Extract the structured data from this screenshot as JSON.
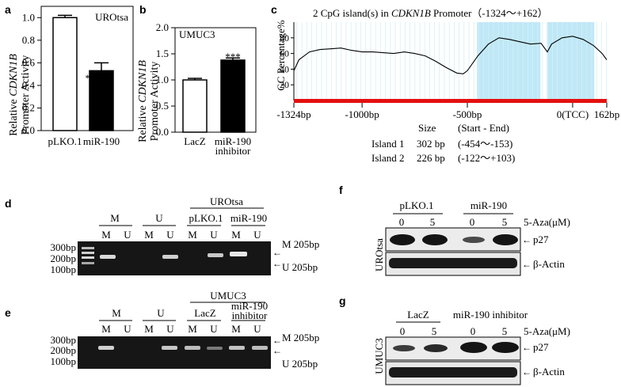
{
  "panels": {
    "a": {
      "label": "a",
      "cell_line": "UROtsa",
      "ylabel_line1_pre": "Relative ",
      "ylabel_gene": "CDKN1B",
      "ylabel_line2": "Promoter Activity",
      "significance": "**"
    },
    "b": {
      "label": "b",
      "cell_line": "UMUC3",
      "ylabel_line1_pre": "Relative ",
      "ylabel_gene": "CDKN1B",
      "ylabel_line2": "Promoter Activity",
      "significance": "***",
      "cat2_line1": "miR-190",
      "cat2_line2": "inhibitor"
    },
    "c": {
      "label": "c",
      "title_pre": "2 CpG island(s)  in ",
      "title_gene": "CDKN1B",
      "title_post": " Promoter（-1324～+162）",
      "ylabel": "GC Percentage%",
      "table": {
        "header_size": "Size",
        "header_range": "(Start - End)",
        "rows": [
          {
            "name": "Island 1",
            "size": "302 bp",
            "range": "(-454～-153)"
          },
          {
            "name": "Island 2",
            "size": "226 bp",
            "range": "(-122～+103)"
          }
        ]
      }
    },
    "d": {
      "label": "d",
      "group_label": "UROtsa",
      "groups": [
        "M",
        "U",
        "pLKO.1",
        "miR-190"
      ],
      "lanes": [
        "M",
        "U",
        "M",
        "U",
        "M",
        "U",
        "M",
        "U"
      ],
      "ladder": [
        "300bp",
        "200bp",
        "100bp"
      ],
      "right_labels": [
        "M 205bp",
        "U 205bp"
      ]
    },
    "e": {
      "label": "e",
      "group_label": "UMUC3",
      "groups": [
        "M",
        "U",
        "LacZ"
      ],
      "group4_line1": "miR-190",
      "group4_line2": "inhibitor",
      "lanes": [
        "M",
        "U",
        "M",
        "U",
        "M",
        "U",
        "M",
        "U"
      ],
      "ladder": [
        "300bp",
        "200bp",
        "100bp"
      ],
      "right_labels": [
        "M 205bp",
        "U 205bp"
      ]
    },
    "f": {
      "label": "f",
      "groups": [
        "pLKO.1",
        "miR-190"
      ],
      "doses": [
        "0",
        "5",
        "0",
        "5"
      ],
      "treatment": "5-Aza(μM)",
      "side_label": "UROtsa",
      "bands": [
        "p27",
        "β-Actin"
      ]
    },
    "g": {
      "label": "g",
      "groups": [
        "LacZ",
        "miR-190 inhibitor"
      ],
      "doses": [
        "0",
        "5",
        "0",
        "5"
      ],
      "treatment": "5-Aza(μM)",
      "side_label": "UMUC3",
      "bands": [
        "p27",
        "β-Actin"
      ]
    }
  },
  "chart_data": [
    {
      "type": "bar",
      "panel": "a",
      "categories": [
        "pLKO.1",
        "miR-190"
      ],
      "values": [
        1.0,
        0.53
      ],
      "errors": [
        0.02,
        0.07
      ],
      "fills": [
        "#ffffff",
        "#000000"
      ],
      "yticks": [
        "0.0",
        "0.2",
        "0.4",
        "0.6",
        "0.8",
        "1.0"
      ],
      "ylim": [
        0,
        1.1
      ]
    },
    {
      "type": "bar",
      "panel": "b",
      "categories": [
        "LacZ",
        "miR-190 inhibitor"
      ],
      "values": [
        1.0,
        1.38
      ],
      "errors": [
        0.03,
        0.04
      ],
      "fills": [
        "#ffffff",
        "#000000"
      ],
      "yticks": [
        "0.0",
        "0.5",
        "1.0",
        "1.5",
        "2.0"
      ],
      "ylim": [
        0,
        2.0
      ]
    },
    {
      "type": "line",
      "panel": "c",
      "x_positions": [
        -1324,
        -1000,
        -500,
        0,
        162
      ],
      "xticks": [
        "-1324bp",
        "-1000bp",
        "-500bp",
        "0(TCC)",
        "162bp"
      ],
      "yticks": [
        "20",
        "40",
        "60",
        "80"
      ],
      "ylim": [
        0,
        100
      ],
      "xlim": [
        -1324,
        162
      ],
      "islands": [
        [
          -454,
          -153
        ],
        [
          -122,
          103
        ]
      ],
      "x": [
        -1324,
        -1300,
        -1250,
        -1200,
        -1150,
        -1100,
        -1050,
        -1000,
        -950,
        -900,
        -850,
        -800,
        -750,
        -700,
        -650,
        -600,
        -550,
        -520,
        -500,
        -450,
        -400,
        -350,
        -300,
        -250,
        -200,
        -150,
        -120,
        -100,
        -50,
        0,
        50,
        100,
        140,
        162
      ],
      "y": [
        38,
        52,
        62,
        65,
        66,
        67,
        64,
        62,
        62,
        61,
        60,
        62,
        60,
        57,
        50,
        42,
        35,
        34,
        38,
        57,
        72,
        80,
        78,
        75,
        72,
        73,
        62,
        72,
        80,
        82,
        78,
        70,
        60,
        52
      ]
    }
  ]
}
